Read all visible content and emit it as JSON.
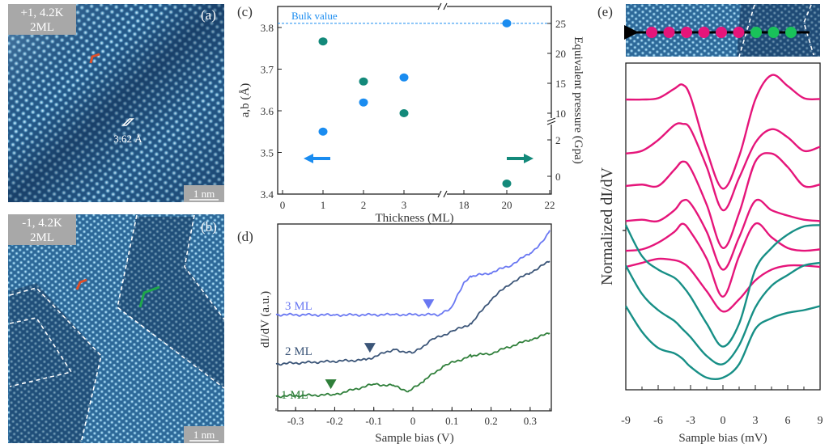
{
  "panels": {
    "a": {
      "label": "(a)",
      "info_line1": "+1, 4.2K",
      "info_line2": "2ML",
      "lattice_label": "3.62 Å",
      "scale_bar": "1 nm"
    },
    "b": {
      "label": "(b)",
      "info_line1": "-1, 4.2K",
      "info_line2": "2ML",
      "scale_bar": "1 nm"
    },
    "c": {
      "label": "(c)"
    },
    "d": {
      "label": "(d)"
    },
    "e": {
      "label": "(e)"
    }
  },
  "colors": {
    "blue": "#1a8cf0",
    "teal": "#13897a",
    "ml3": "#6a78f2",
    "ml2": "#3b5578",
    "ml1": "#2f7f3a",
    "pink": "#e5157a",
    "teal_e": "#178f86",
    "green_dot": "#19c25a"
  },
  "chart_data": [
    {
      "type": "scatter",
      "panel": "c",
      "xlabel": "Thickness  (ML)",
      "ylabel": "a,b (Å)",
      "ylabel_right": "Equivalent pressure (Gpa)",
      "annotation": "Bulk value",
      "bulk_value": 3.81,
      "x_ticks": [
        "0",
        "1",
        "2",
        "3",
        "18",
        "20",
        "22"
      ],
      "x_axis_break": "between 3 and 18",
      "y_ticks": [
        "3.4",
        "3.5",
        "3.6",
        "3.7",
        "3.8"
      ],
      "ylim": [
        3.4,
        3.85
      ],
      "y_right_ticks": [
        "0",
        "2",
        "10",
        "15",
        "20",
        "25"
      ],
      "y_right_axis_break": "between 2 and 10",
      "series": [
        {
          "axis": "left",
          "color": "#1a8cf0",
          "x": [
            1,
            2,
            3,
            20
          ],
          "y": [
            3.55,
            3.62,
            3.68,
            3.81
          ]
        },
        {
          "axis": "right",
          "color": "#13897a",
          "x": [
            1,
            2,
            3,
            20
          ],
          "y": [
            22,
            15.3,
            10,
            -0.4
          ]
        }
      ],
      "arrows": [
        {
          "direction": "left",
          "color": "#1a8cf0"
        },
        {
          "direction": "right",
          "color": "#13897a"
        }
      ]
    },
    {
      "type": "line",
      "panel": "d",
      "xlabel": "Sample bias (V)",
      "ylabel": "dI/dV (a.u.)",
      "xlim": [
        -0.35,
        0.35
      ],
      "x_ticks": [
        "-0.3",
        "-0.2",
        "-0.1",
        "0",
        "0.1",
        "0.2",
        "0.3"
      ],
      "series": [
        {
          "name": "3 ML",
          "color": "#6a78f2",
          "marker_x": 0.04,
          "x": [
            -0.35,
            -0.2,
            -0.05,
            0.07,
            0.1,
            0.13,
            0.15,
            0.2,
            0.25,
            0.3,
            0.33,
            0.35
          ],
          "y": [
            5.17,
            5.15,
            5.17,
            5.17,
            5.57,
            6.87,
            7.22,
            7.43,
            7.83,
            8.48,
            9.04,
            9.7
          ]
        },
        {
          "name": "2 ML",
          "color": "#3b5578",
          "marker_x": -0.11,
          "x": [
            -0.35,
            -0.12,
            -0.05,
            0,
            0.05,
            0.1,
            0.15,
            0.2,
            0.25,
            0.3,
            0.35
          ],
          "y": [
            2.52,
            2.74,
            3.3,
            3.09,
            3.83,
            4.26,
            4.7,
            6.0,
            6.87,
            7.43,
            8.04
          ]
        },
        {
          "name": "1 ML",
          "color": "#2f7f3a",
          "marker_x": -0.21,
          "x": [
            -0.35,
            -0.2,
            -0.1,
            -0.05,
            -0.01,
            0.03,
            0.08,
            0.15,
            0.2,
            0.3,
            0.35
          ],
          "y": [
            0.78,
            0.87,
            1.43,
            1.35,
            1.04,
            1.65,
            2.43,
            2.96,
            3.09,
            3.83,
            4.17
          ]
        }
      ]
    },
    {
      "type": "line",
      "panel": "e",
      "xlabel": "Sample bias (mV)",
      "ylabel": "Normalized dI/dV",
      "xlim": [
        -9,
        9
      ],
      "ylim": [
        0,
        12.1
      ],
      "x_ticks": [
        "-9",
        "-6",
        "-3",
        "0",
        "3",
        "6",
        "9"
      ],
      "x": [
        -9,
        -7.5,
        -6,
        -4.5,
        -3.75,
        -3,
        -1.5,
        0,
        1.5,
        3,
        4.5,
        6,
        7.5,
        9
      ],
      "series": [
        {
          "color": "#e5157a",
          "y": [
            10.75,
            10.75,
            10.8,
            11.15,
            11.3,
            10.85,
            8.85,
            7.45,
            8.65,
            10.75,
            11.65,
            11.25,
            10.8,
            10.77
          ]
        },
        {
          "color": "#e5157a",
          "y": [
            8.75,
            8.85,
            9.25,
            9.8,
            9.85,
            9.65,
            8.25,
            6.65,
            7.85,
            9.15,
            9.65,
            9.35,
            8.85,
            9.0
          ]
        },
        {
          "color": "#e5157a",
          "y": [
            7.55,
            7.6,
            7.55,
            8.15,
            8.45,
            8.2,
            6.85,
            5.25,
            6.55,
            8.45,
            8.75,
            8.25,
            7.55,
            7.6
          ]
        },
        {
          "color": "#e5157a",
          "y": [
            6.25,
            6.3,
            6.25,
            6.65,
            7.0,
            6.9,
            5.85,
            4.45,
            5.65,
            7.0,
            6.65,
            6.45,
            6.3,
            6.25
          ]
        },
        {
          "color": "#e5157a",
          "y": [
            5.15,
            5.2,
            5.45,
            5.85,
            6.15,
            5.85,
            4.85,
            3.45,
            4.95,
            6.15,
            5.65,
            5.25,
            5.15,
            5.2
          ]
        },
        {
          "color": "#e5157a",
          "y": [
            4.55,
            4.7,
            4.85,
            4.8,
            4.7,
            4.45,
            3.65,
            2.9,
            3.35,
            4.05,
            4.45,
            4.6,
            4.6,
            4.55
          ]
        },
        {
          "color": "#178f86",
          "y": [
            6.1,
            4.95,
            4.45,
            4.15,
            3.85,
            3.45,
            2.45,
            1.6,
            2.45,
            4.45,
            5.25,
            5.75,
            6.05,
            6.1
          ]
        },
        {
          "color": "#178f86",
          "y": [
            4.6,
            3.55,
            2.95,
            2.55,
            2.25,
            1.95,
            1.25,
            0.95,
            1.65,
            3.05,
            3.85,
            4.25,
            4.6,
            4.7
          ]
        },
        {
          "color": "#178f86",
          "y": [
            3.1,
            2.15,
            1.55,
            1.35,
            1.15,
            0.85,
            0.45,
            0.45,
            0.95,
            2.25,
            2.65,
            2.85,
            2.95,
            3.1
          ]
        }
      ],
      "inset_dots": {
        "pink_count": 6,
        "green_count": 3
      }
    }
  ]
}
